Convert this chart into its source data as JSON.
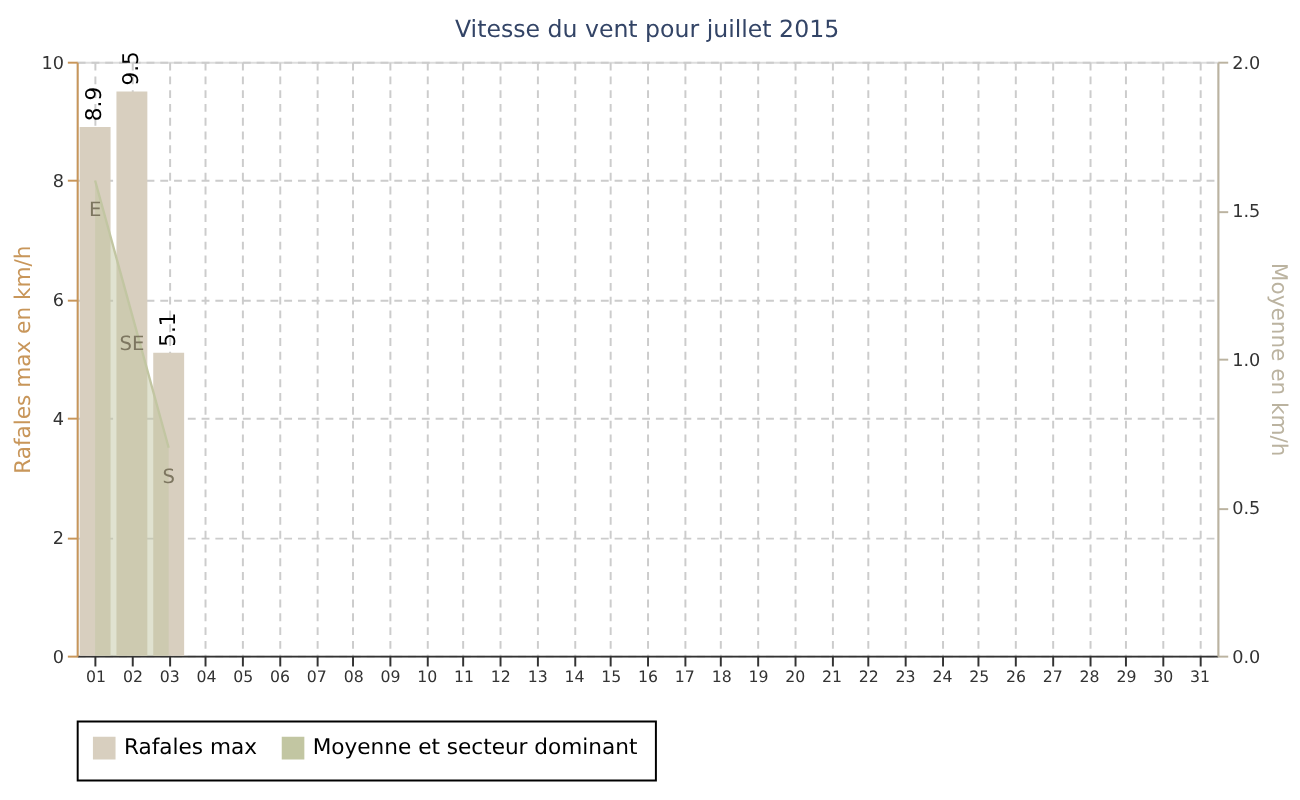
{
  "chart_data": {
    "type": "bar",
    "title": "Vitesse du vent pour juillet 2015",
    "ylabel": "Rafales max en km/h",
    "y2label": "Moyenne en km/h",
    "categories": [
      "01",
      "02",
      "03",
      "04",
      "05",
      "06",
      "07",
      "08",
      "09",
      "10",
      "11",
      "12",
      "13",
      "14",
      "15",
      "16",
      "17",
      "18",
      "19",
      "20",
      "21",
      "22",
      "23",
      "24",
      "25",
      "26",
      "27",
      "28",
      "29",
      "30",
      "31"
    ],
    "series": [
      {
        "name": "Rafales max",
        "color": "#d8cfbf",
        "values": [
          8.9,
          9.5,
          5.1,
          null,
          null,
          null,
          null,
          null,
          null,
          null,
          null,
          null,
          null,
          null,
          null,
          null,
          null,
          null,
          null,
          null,
          null,
          null,
          null,
          null,
          null,
          null,
          null,
          null,
          null,
          null,
          null
        ]
      },
      {
        "name": "Moyenne et secteur dominant",
        "type": "area",
        "axis": "y2",
        "color": "#c2c6a2",
        "values": [
          1.6,
          1.15,
          0.7,
          null,
          null,
          null,
          null,
          null,
          null,
          null,
          null,
          null,
          null,
          null,
          null,
          null,
          null,
          null,
          null,
          null,
          null,
          null,
          null,
          null,
          null,
          null,
          null,
          null,
          null,
          null,
          null
        ],
        "value_labels": [
          "E",
          "SE",
          "S",
          null,
          null,
          null,
          null,
          null,
          null,
          null,
          null,
          null,
          null,
          null,
          null,
          null,
          null,
          null,
          null,
          null,
          null,
          null,
          null,
          null,
          null,
          null,
          null,
          null,
          null,
          null,
          null
        ]
      }
    ],
    "data_labels": true,
    "ylim": [
      0,
      10
    ],
    "yticks": [
      0,
      2,
      4,
      6,
      8,
      10
    ],
    "y2lim": [
      0,
      2
    ],
    "y2ticks": [
      {
        "value": 0,
        "label": "0.0"
      },
      0.5,
      {
        "value": 1,
        "label": "1.0"
      },
      1.5,
      {
        "value": 2,
        "label": "2.0"
      }
    ],
    "grid": true,
    "line_style": "dashed",
    "legend": "bottom"
  }
}
